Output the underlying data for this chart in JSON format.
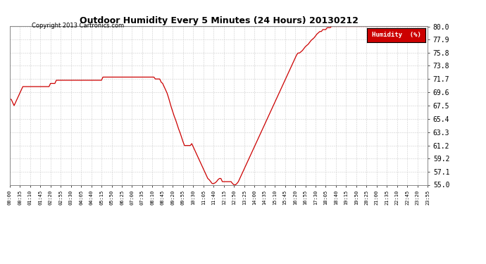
{
  "title": "Outdoor Humidity Every 5 Minutes (24 Hours) 20130212",
  "copyright": "Copyright 2013 Cartronics.com",
  "legend_label": "Humidity  (%)",
  "line_color": "#cc0000",
  "background_color": "#ffffff",
  "grid_color": "#cccccc",
  "ylim": [
    55.0,
    80.0
  ],
  "yticks": [
    55.0,
    57.1,
    59.2,
    61.2,
    63.3,
    65.4,
    67.5,
    69.6,
    71.7,
    73.8,
    75.8,
    77.9,
    80.0
  ],
  "xtick_interval_minutes": 35,
  "humidity_data": [
    68.5,
    68.5,
    68.0,
    67.5,
    68.0,
    68.5,
    69.0,
    69.5,
    70.0,
    70.5,
    70.5,
    70.5,
    70.5,
    70.5,
    70.5,
    70.5,
    70.5,
    70.5,
    70.5,
    70.5,
    70.5,
    70.5,
    70.5,
    70.5,
    70.5,
    70.5,
    70.5,
    70.5,
    71.0,
    71.0,
    71.0,
    71.0,
    71.5,
    71.5,
    71.5,
    71.5,
    71.5,
    71.5,
    71.5,
    71.5,
    71.5,
    71.5,
    71.5,
    71.5,
    71.5,
    71.5,
    71.5,
    71.5,
    71.5,
    71.5,
    71.5,
    71.5,
    71.5,
    71.5,
    71.5,
    71.5,
    71.5,
    71.5,
    71.5,
    71.5,
    71.5,
    71.5,
    71.5,
    71.5,
    72.0,
    72.0,
    72.0,
    72.0,
    72.0,
    72.0,
    72.0,
    72.0,
    72.0,
    72.0,
    72.0,
    72.0,
    72.0,
    72.0,
    72.0,
    72.0,
    72.0,
    72.0,
    72.0,
    72.0,
    72.0,
    72.0,
    72.0,
    72.0,
    72.0,
    72.0,
    72.0,
    72.0,
    72.0,
    72.0,
    72.0,
    72.0,
    72.0,
    72.0,
    72.0,
    72.0,
    71.7,
    71.7,
    71.7,
    71.7,
    71.2,
    71.0,
    70.5,
    70.0,
    69.5,
    68.8,
    68.0,
    67.2,
    66.5,
    65.8,
    65.2,
    64.5,
    63.8,
    63.2,
    62.5,
    61.8,
    61.2,
    61.2,
    61.2,
    61.2,
    61.2,
    61.5,
    61.0,
    60.5,
    60.0,
    59.5,
    59.0,
    58.5,
    58.0,
    57.5,
    57.0,
    56.5,
    56.0,
    55.8,
    55.5,
    55.2,
    55.2,
    55.3,
    55.5,
    55.8,
    56.0,
    56.0,
    55.5,
    55.5,
    55.5,
    55.5,
    55.5,
    55.5,
    55.5,
    55.2,
    55.0,
    55.0,
    55.2,
    55.5,
    56.0,
    56.5,
    57.0,
    57.5,
    58.0,
    58.5,
    59.0,
    59.5,
    60.0,
    60.5,
    61.0,
    61.5,
    62.0,
    62.5,
    63.0,
    63.5,
    64.0,
    64.5,
    65.0,
    65.5,
    66.0,
    66.5,
    67.0,
    67.5,
    68.0,
    68.5,
    69.0,
    69.5,
    70.0,
    70.5,
    71.0,
    71.5,
    72.0,
    72.5,
    73.0,
    73.5,
    74.0,
    74.5,
    75.0,
    75.5,
    75.8,
    75.8,
    76.0,
    76.2,
    76.5,
    76.8,
    77.0,
    77.2,
    77.5,
    77.8,
    78.0,
    78.2,
    78.5,
    78.8,
    79.0,
    79.2,
    79.2,
    79.5,
    79.5,
    79.5,
    79.8,
    79.8,
    79.8,
    80.0,
    80.0,
    80.0,
    80.0,
    80.0,
    80.0,
    80.0,
    80.0,
    80.0,
    80.0,
    80.0,
    80.0,
    80.0,
    80.0,
    80.0,
    80.0,
    80.0,
    80.0,
    80.0,
    80.0,
    80.0,
    80.0,
    80.0,
    80.0,
    80.0,
    80.0,
    80.0,
    80.0,
    80.0,
    80.0,
    80.0,
    80.0,
    80.0,
    80.0,
    80.0,
    80.0,
    80.0,
    80.0,
    80.0,
    80.0,
    80.0,
    80.0,
    80.0,
    80.0,
    80.0,
    80.0,
    80.0,
    80.0,
    80.0,
    80.0,
    80.0,
    80.0,
    80.0,
    80.0,
    80.0,
    80.0,
    80.0,
    80.0,
    80.0,
    80.0,
    80.0,
    80.0,
    80.0,
    80.0,
    80.0,
    80.0,
    80.0
  ]
}
